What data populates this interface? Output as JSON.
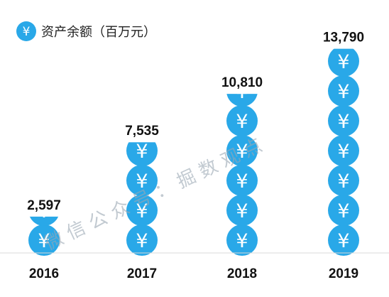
{
  "chart_data": {
    "type": "bar",
    "title": "",
    "legend": {
      "label": "资产余额（百万元）",
      "icon": "yuan-coin-icon"
    },
    "categories": [
      "2016",
      "2017",
      "2018",
      "2019"
    ],
    "values": [
      2597,
      7535,
      10810,
      13790
    ],
    "value_labels": [
      "2,597",
      "7,535",
      "10,810",
      "13,790"
    ],
    "coins_per_unit": 2000,
    "colors": {
      "coin": "#29a8e8",
      "baseline": "#d9d9d9"
    }
  },
  "icon_glyph": "¥",
  "watermark": "微 信 公 众 号 ： 掘 数 观 点"
}
